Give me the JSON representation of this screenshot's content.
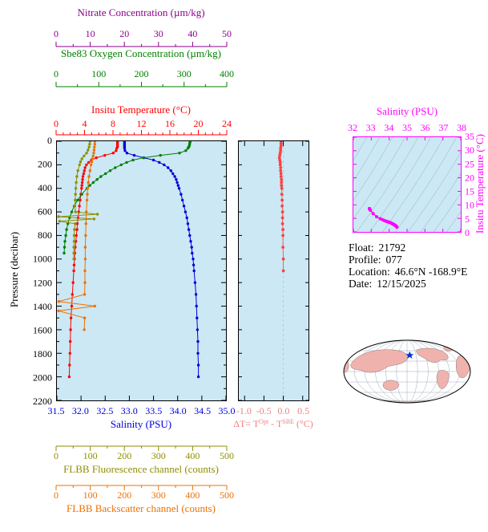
{
  "info": {
    "float_label": "Float:",
    "float_value": "21792",
    "profile_label": "Profile:",
    "profile_value": "077",
    "location_label": "Location:",
    "location_value": "46.6°N -168.9°E",
    "date_label": "Date:",
    "date_value": "12/15/2025"
  },
  "chart_data": [
    {
      "id": "profile-plot",
      "type": "line",
      "ylabel": "Pressure (decibar)",
      "ylim": [
        0,
        2200
      ],
      "y_ticks": [
        0,
        200,
        400,
        600,
        800,
        1000,
        1200,
        1400,
        1600,
        1800,
        2000,
        2200
      ],
      "plot_background": "#CBE8F4",
      "axes": [
        {
          "series": "nitrate",
          "label": "Nitrate Concentration (µm/kg)",
          "color": "#8B008B",
          "lim": [
            0,
            50
          ],
          "ticks": [
            0,
            10,
            20,
            30,
            40,
            50
          ],
          "position": "top"
        },
        {
          "series": "oxygen",
          "label": "Sbe83 Oxygen Concentration (µm/kg)",
          "color": "#008000",
          "lim": [
            0,
            400
          ],
          "ticks": [
            0,
            100,
            200,
            300,
            400
          ],
          "position": "top"
        },
        {
          "series": "temperature",
          "label": "Insitu Temperature (°C)",
          "color": "#FF0000",
          "lim": [
            0,
            24
          ],
          "ticks": [
            0,
            4,
            8,
            12,
            16,
            20,
            24
          ],
          "position": "top"
        },
        {
          "series": "salinity",
          "label": "Salinity (PSU)",
          "color": "#0000DD",
          "lim": [
            31.5,
            35.0
          ],
          "ticks": [
            "31.5",
            "32.0",
            "32.5",
            "33.0",
            "33.5",
            "34.0",
            "34.5",
            "35.0"
          ],
          "position": "bottom"
        },
        {
          "series": "fluorescence",
          "label": "FLBB Fluorescence channel (counts)",
          "color": "#8F8F00",
          "lim": [
            0,
            500
          ],
          "ticks": [
            0,
            100,
            200,
            300,
            400,
            500
          ],
          "position": "bottom"
        },
        {
          "series": "backscatter",
          "label": "FLBB Backscatter channel (counts)",
          "color": "#EF7000",
          "lim": [
            0,
            500
          ],
          "ticks": [
            0,
            100,
            200,
            300,
            400,
            500
          ],
          "position": "bottom"
        }
      ],
      "series": [
        {
          "name": "temperature",
          "color": "#FF0000",
          "pressure": [
            0,
            10,
            20,
            30,
            40,
            50,
            60,
            80,
            100,
            120,
            140,
            160,
            180,
            200,
            225,
            250,
            275,
            300,
            325,
            350,
            375,
            400,
            450,
            500,
            550,
            600,
            650,
            700,
            750,
            800,
            850,
            900,
            950,
            1000,
            1050,
            1100,
            1200,
            1300,
            1400,
            1500,
            1600,
            1700,
            1800,
            1900,
            2000
          ],
          "values": [
            8.6,
            8.6,
            8.6,
            8.6,
            8.6,
            8.6,
            8.5,
            8.4,
            8.0,
            6.8,
            5.6,
            4.9,
            4.5,
            4.2,
            4.0,
            3.9,
            3.8,
            3.7,
            3.65,
            3.6,
            3.55,
            3.5,
            3.4,
            3.3,
            3.2,
            3.1,
            3.0,
            2.9,
            2.85,
            2.75,
            2.7,
            2.6,
            2.55,
            2.5,
            2.45,
            2.4,
            2.3,
            2.2,
            2.1,
            2.0,
            1.95,
            1.9,
            1.85,
            1.8,
            1.75
          ]
        },
        {
          "name": "salinity",
          "color": "#0000DD",
          "pressure": [
            0,
            10,
            20,
            30,
            40,
            50,
            60,
            80,
            100,
            120,
            140,
            160,
            180,
            200,
            225,
            250,
            275,
            300,
            325,
            350,
            375,
            400,
            450,
            500,
            550,
            600,
            650,
            700,
            750,
            800,
            850,
            900,
            950,
            1000,
            1050,
            1100,
            1200,
            1300,
            1400,
            1500,
            1600,
            1700,
            1800,
            1900,
            2000
          ],
          "values": [
            32.9,
            32.9,
            32.9,
            32.9,
            32.9,
            32.9,
            32.9,
            32.91,
            32.95,
            33.1,
            33.3,
            33.5,
            33.62,
            33.72,
            33.8,
            33.86,
            33.9,
            33.94,
            33.97,
            33.99,
            34.01,
            34.03,
            34.07,
            34.1,
            34.13,
            34.16,
            34.19,
            34.21,
            34.23,
            34.25,
            34.27,
            34.29,
            34.3,
            34.32,
            34.33,
            34.34,
            34.36,
            34.38,
            34.39,
            34.4,
            34.41,
            34.42,
            34.42,
            34.43,
            34.43
          ]
        },
        {
          "name": "oxygen",
          "color": "#008000",
          "pressure": [
            0,
            10,
            20,
            30,
            40,
            50,
            60,
            80,
            100,
            120,
            140,
            160,
            180,
            200,
            225,
            250,
            275,
            300,
            325,
            350,
            375,
            400,
            450,
            500,
            550,
            600,
            650,
            700,
            750,
            800,
            850,
            900,
            950
          ],
          "values": [
            315,
            315,
            314,
            314,
            313,
            312,
            310,
            305,
            290,
            245,
            205,
            180,
            165,
            152,
            138,
            126,
            115,
            104,
            95,
            86,
            78,
            71,
            59,
            49,
            41,
            35,
            30,
            26,
            23,
            21,
            19,
            18,
            17
          ]
        },
        {
          "name": "fluorescence",
          "color": "#8F8F00",
          "pressure": [
            0,
            25,
            50,
            75,
            100,
            125,
            150,
            175,
            200,
            250,
            300,
            350,
            400,
            450,
            500,
            550,
            600,
            620,
            640,
            660,
            680,
            700,
            750,
            800,
            850,
            900,
            950,
            1000
          ],
          "values": [
            98,
            97,
            95,
            92,
            88,
            80,
            74,
            70,
            67,
            62,
            59,
            57,
            56,
            55,
            54,
            53,
            55,
            120,
            5,
            110,
            8,
            54,
            52,
            51,
            51,
            50,
            50,
            50
          ]
        },
        {
          "name": "backscatter",
          "color": "#EF7000",
          "pressure": [
            0,
            25,
            50,
            75,
            100,
            125,
            150,
            175,
            200,
            250,
            300,
            350,
            400,
            450,
            500,
            600,
            700,
            800,
            900,
            1000,
            1100,
            1200,
            1300,
            1360,
            1400,
            1440,
            1500,
            1600
          ],
          "values": [
            112,
            112,
            111,
            110,
            109,
            107,
            105,
            103,
            101,
            98,
            95,
            93,
            91,
            90,
            89,
            87,
            86,
            85,
            84,
            84,
            83,
            83,
            82,
            6,
            112,
            5,
            82,
            81
          ]
        }
      ]
    },
    {
      "id": "delta-t-plot",
      "type": "scatter",
      "xlabel_parts": [
        "ΔT= T",
        "Opt",
        " - T",
        "SBE",
        " (°C)"
      ],
      "axis_color": "#F08080",
      "xlim": [
        -1.15,
        0.65
      ],
      "x_ticks": [
        "-1.0",
        "-0.5",
        "0.0",
        "0.5"
      ],
      "ylim": [
        0,
        2200
      ],
      "series": [
        {
          "name": "delta_t",
          "color": "#FF4040",
          "pressure": [
            0,
            20,
            40,
            60,
            80,
            100,
            120,
            140,
            160,
            180,
            200,
            225,
            250,
            275,
            300,
            325,
            350,
            375,
            400,
            450,
            500,
            550,
            600,
            650,
            700,
            750,
            800,
            900,
            1000,
            1100
          ],
          "values": [
            -0.06,
            -0.06,
            -0.06,
            -0.07,
            -0.07,
            -0.08,
            -0.09,
            -0.1,
            -0.09,
            -0.08,
            -0.08,
            -0.07,
            -0.07,
            -0.06,
            -0.06,
            -0.05,
            -0.05,
            -0.05,
            -0.04,
            -0.04,
            -0.03,
            -0.03,
            -0.02,
            -0.02,
            -0.02,
            -0.01,
            -0.01,
            -0.01,
            0.0,
            0.0
          ]
        }
      ]
    },
    {
      "id": "ts-diagram",
      "type": "scatter",
      "xlabel": "Salinity (PSU)",
      "ylabel": "Insitu Temperature (°C)",
      "color": "#FF00FF",
      "xlim": [
        32,
        38
      ],
      "x_ticks": [
        32,
        33,
        34,
        35,
        36,
        37,
        38
      ],
      "ylim": [
        0,
        35
      ],
      "y_ticks": [
        0,
        5,
        10,
        15,
        20,
        25,
        30,
        35
      ],
      "source_series": [
        "salinity",
        "temperature"
      ],
      "contours": "density isopycnals (background)"
    },
    {
      "id": "location-map",
      "type": "map",
      "marker": {
        "lat": 46.6,
        "lon": -168.9
      },
      "marker_color": "#0033CC",
      "land_color": "#F0B2AD",
      "ocean_color": "#FFFFFF"
    }
  ]
}
